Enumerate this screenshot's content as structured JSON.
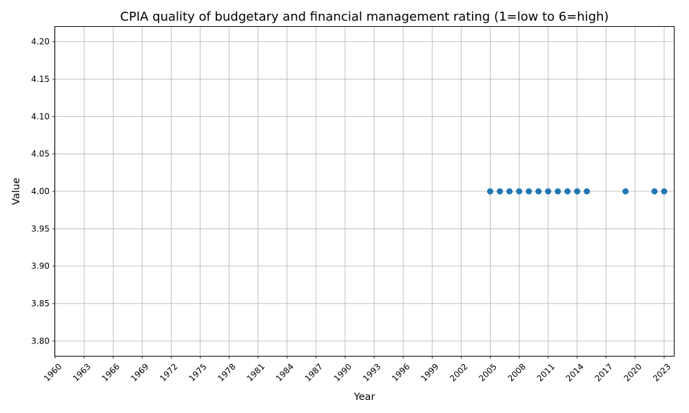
{
  "chart_data": {
    "type": "scatter",
    "title": "CPIA quality of budgetary and financial management rating (1=low to 6=high)",
    "xlabel": "Year",
    "ylabel": "Value",
    "xlim": [
      1960,
      2024
    ],
    "ylim": [
      3.78,
      4.22
    ],
    "xticks": [
      1960,
      1963,
      1966,
      1969,
      1972,
      1975,
      1978,
      1981,
      1984,
      1987,
      1990,
      1993,
      1996,
      1999,
      2002,
      2005,
      2008,
      2011,
      2014,
      2017,
      2020,
      2023
    ],
    "yticks": [
      "3.80",
      "3.85",
      "3.90",
      "3.95",
      "4.00",
      "4.05",
      "4.10",
      "4.15",
      "4.20"
    ],
    "grid": true,
    "color": "#1f77b4",
    "series": [
      {
        "x": [
          2005,
          2006,
          2007,
          2008,
          2009,
          2010,
          2011,
          2012,
          2013,
          2014,
          2015,
          2019,
          2022,
          2023
        ],
        "y": [
          4.0,
          4.0,
          4.0,
          4.0,
          4.0,
          4.0,
          4.0,
          4.0,
          4.0,
          4.0,
          4.0,
          4.0,
          4.0,
          4.0
        ]
      }
    ]
  }
}
